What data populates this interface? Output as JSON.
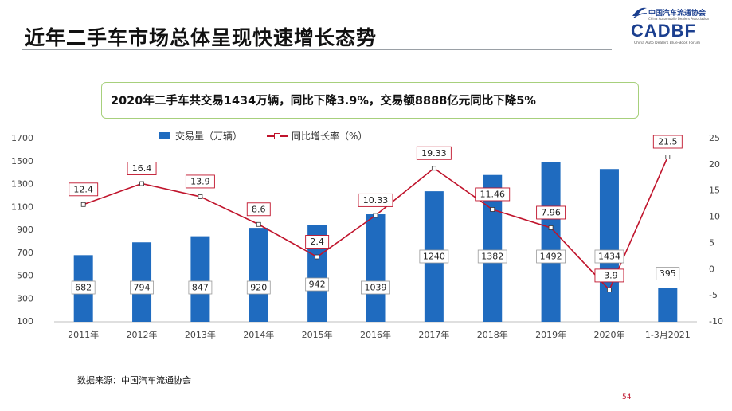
{
  "header": {
    "title": "近年二手车市场总体呈现快速增长态势"
  },
  "logo": {
    "cn_name": "中国汽车流通协会",
    "en_name": "China Automobile Dealers Association",
    "main": "CADBF",
    "sub": "China Auto Dealers Blue-Book Forum"
  },
  "summary": {
    "text": "2020年二手车共交易1434万辆，同比下降3.9%，交易额8888亿元同比下降5%"
  },
  "chart_data": {
    "type": "bar+line",
    "categories": [
      "2011年",
      "2012年",
      "2013年",
      "2014年",
      "2015年",
      "2016年",
      "2017年",
      "2018年",
      "2019年",
      "2020年",
      "1-3月2021"
    ],
    "series": [
      {
        "name": "交易量（万辆）",
        "type": "bar",
        "axis": "left",
        "values": [
          682,
          794,
          847,
          920,
          942,
          1039,
          1240,
          1382,
          1492,
          1434,
          395
        ],
        "labels": [
          "682",
          "794",
          "847",
          "920",
          "942",
          "1039",
          "1240",
          "1382",
          "1492",
          "1434",
          "395"
        ],
        "color": "#1f6bbf"
      },
      {
        "name": "同比增长率（%）",
        "type": "line",
        "axis": "right",
        "values": [
          12.4,
          16.4,
          13.9,
          8.6,
          2.4,
          10.33,
          19.33,
          11.46,
          7.96,
          -3.9,
          21.5
        ],
        "labels": [
          "12.4",
          "16.4",
          "13.9",
          "8.6",
          "2.4",
          "10.33",
          "19.33",
          "11.46",
          "7.96",
          "-3.9",
          "21.5"
        ],
        "color": "#c0142c"
      }
    ],
    "y_left": {
      "ticks": [
        "100",
        "300",
        "500",
        "700",
        "900",
        "1100",
        "1300",
        "1500",
        "1700"
      ],
      "min": 100,
      "max": 1700
    },
    "y_right": {
      "ticks": [
        "-10",
        "-5",
        "0",
        "5",
        "10",
        "15",
        "20",
        "25"
      ],
      "min": -10,
      "max": 25
    },
    "legend_position": "top-left",
    "grid": false
  },
  "footer": {
    "source": "数据来源：中国汽车流通协会",
    "page_number": "54"
  }
}
